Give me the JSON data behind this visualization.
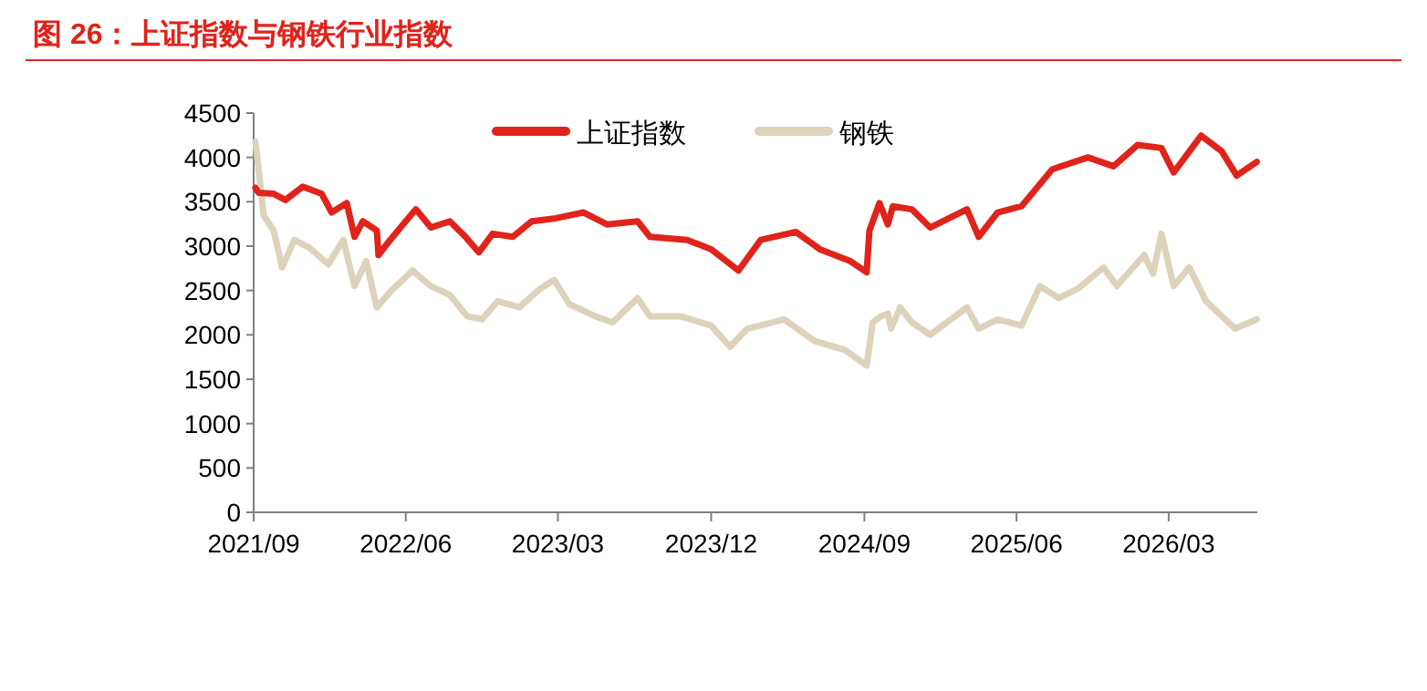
{
  "chart_data": {
    "type": "line",
    "title": "图 26：上证指数与钢铁行业指数",
    "xlim": [
      "2021-09-01",
      "2026-08-07"
    ],
    "xticks": [
      {
        "value": "2021-09-01",
        "label": "2021/09"
      },
      {
        "value": "2022-06-01",
        "label": "2022/06"
      },
      {
        "value": "2023-03-01",
        "label": "2023/03"
      },
      {
        "value": "2023-12-01",
        "label": "2023/12"
      },
      {
        "value": "2024-09-01",
        "label": "2024/09"
      },
      {
        "value": "2025-06-01",
        "label": "2025/06"
      },
      {
        "value": "2026-03-01",
        "label": "2026/03"
      }
    ],
    "ylim": [
      0,
      4500
    ],
    "yticks": [
      0,
      500,
      1000,
      1500,
      2000,
      2500,
      3000,
      3500,
      4000,
      4500
    ],
    "grid": false,
    "legend": "top",
    "marker": "none",
    "line_style": "solid",
    "series": [
      {
        "name": "上证指数",
        "color": "#e0231b",
        "x": [
          "2021-09-04",
          "2021-09-10",
          "2021-10-07",
          "2021-10-28",
          "2021-11-28",
          "2022-01-01",
          "2022-01-19",
          "2022-02-15",
          "2022-03-01",
          "2022-03-16",
          "2022-04-10",
          "2022-04-13",
          "2022-05-04",
          "2022-06-19",
          "2022-07-16",
          "2022-08-19",
          "2022-09-16",
          "2022-10-10",
          "2022-11-04",
          "2022-12-10",
          "2023-01-13",
          "2023-02-22",
          "2023-04-16",
          "2023-05-28",
          "2023-07-22",
          "2023-08-13",
          "2023-10-19",
          "2023-12-01",
          "2024-01-19",
          "2024-02-28",
          "2024-05-01",
          "2024-06-13",
          "2024-08-07",
          "2024-09-05",
          "2024-09-10",
          "2024-09-28",
          "2024-10-13",
          "2024-10-22",
          "2024-11-25",
          "2024-12-28",
          "2025-03-04",
          "2025-03-25",
          "2025-04-28",
          "2025-06-10",
          "2025-08-04",
          "2025-10-07",
          "2025-11-22",
          "2026-01-04",
          "2026-02-16",
          "2026-03-10",
          "2026-04-28",
          "2026-06-04",
          "2026-07-01",
          "2026-08-06"
        ],
        "values": [
          3657,
          3600,
          3590,
          3520,
          3670,
          3590,
          3380,
          3485,
          3105,
          3280,
          3175,
          2900,
          3070,
          3415,
          3210,
          3280,
          3105,
          2930,
          3140,
          3105,
          3280,
          3310,
          3380,
          3245,
          3280,
          3105,
          3070,
          2965,
          2725,
          3070,
          3160,
          2965,
          2830,
          2705,
          3175,
          3485,
          3245,
          3450,
          3415,
          3210,
          3415,
          3105,
          3380,
          3450,
          3865,
          4000,
          3900,
          4140,
          4105,
          3830,
          4245,
          4070,
          3795,
          3950
        ]
      },
      {
        "name": "钢铁",
        "color": "#ddd3bb",
        "x": [
          "2021-09-04",
          "2021-09-10",
          "2021-09-19",
          "2021-10-07",
          "2021-10-22",
          "2021-11-13",
          "2021-12-10",
          "2022-01-13",
          "2022-02-09",
          "2022-03-01",
          "2022-03-22",
          "2022-04-10",
          "2022-05-04",
          "2022-06-13",
          "2022-07-16",
          "2022-08-19",
          "2022-09-19",
          "2022-10-16",
          "2022-11-13",
          "2022-12-22",
          "2023-01-28",
          "2023-02-22",
          "2023-03-22",
          "2023-05-07",
          "2023-06-07",
          "2023-07-22",
          "2023-08-13",
          "2023-10-07",
          "2023-12-01",
          "2024-01-04",
          "2024-02-04",
          "2024-04-10",
          "2024-06-04",
          "2024-07-28",
          "2024-09-05",
          "2024-09-16",
          "2024-10-01",
          "2024-10-13",
          "2024-10-19",
          "2024-11-04",
          "2024-11-25",
          "2024-12-28",
          "2025-03-04",
          "2025-03-25",
          "2025-04-28",
          "2025-06-10",
          "2025-07-13",
          "2025-08-16",
          "2025-09-19",
          "2025-11-04",
          "2025-11-28",
          "2026-01-16",
          "2026-02-01",
          "2026-02-16",
          "2026-03-10",
          "2026-04-07",
          "2026-05-07",
          "2026-06-28",
          "2026-08-06"
        ],
        "values": [
          4175,
          3865,
          3345,
          3175,
          2760,
          3070,
          2980,
          2795,
          3070,
          2550,
          2830,
          2310,
          2485,
          2725,
          2550,
          2450,
          2210,
          2175,
          2380,
          2310,
          2520,
          2620,
          2345,
          2210,
          2140,
          2415,
          2210,
          2210,
          2105,
          1865,
          2070,
          2175,
          1930,
          1830,
          1655,
          2140,
          2210,
          2240,
          2070,
          2310,
          2140,
          2000,
          2310,
          2070,
          2175,
          2105,
          2550,
          2415,
          2520,
          2760,
          2550,
          2900,
          2690,
          3140,
          2550,
          2760,
          2380,
          2070,
          2175
        ]
      }
    ]
  }
}
